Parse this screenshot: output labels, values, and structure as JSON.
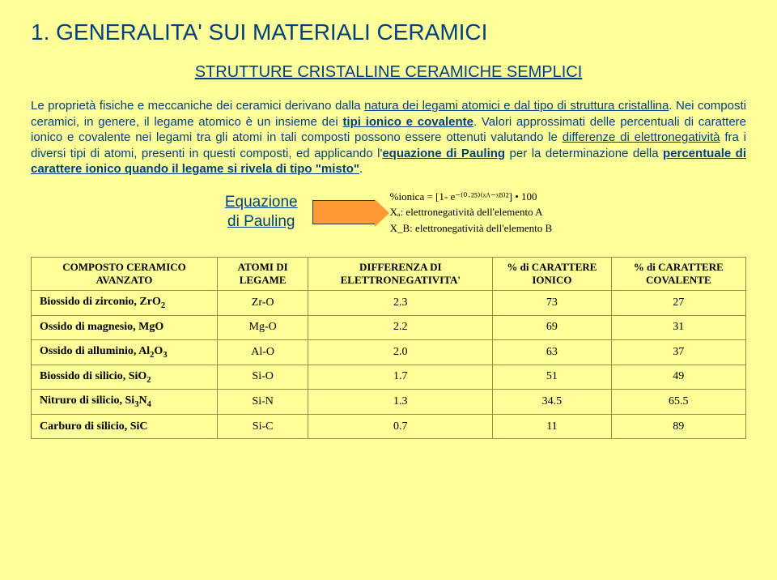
{
  "title": "1. GENERALITA' SUI MATERIALI CERAMICI",
  "subtitle": "STRUTTURE CRISTALLINE CERAMICHE SEMPLICI",
  "paragraph": {
    "p1_a": "Le proprietà fisiche e meccaniche dei ceramici derivano dalla ",
    "p1_u1": "natura dei legami atomici e dal tipo di struttura cristallina",
    "p1_b": ". Nei composti ceramici, in genere, il legame atomico è un insieme dei ",
    "p1_u2": "tipi ionico e covalente",
    "p1_c": ". Valori approssimati delle percentuali di carattere ionico e covalente nei legami tra gli atomi in tali composti possono essere ottenuti valutando le ",
    "p1_u3": "differenze di elettronegatività",
    "p1_d": " fra i diversi tipi di atomi, presenti in questi composti, ed applicando l'",
    "p1_u4": "equazione di Pauling",
    "p1_e": " per la determinazione della ",
    "p1_u5": "percentuale di carattere ionico quando il legame si rivela di tipo \"misto\"",
    "p1_f": "."
  },
  "equation": {
    "label_line1": "Equazione",
    "label_line2": "di Pauling",
    "formula_line1": "%ionica = [1- e⁻⁽⁰·²⁵⁾⁽ˣᴬ⁻ˣᴮ⁾²] • 100",
    "formula_line2": "Xₐ: elettronegatività dell'elemento A",
    "formula_line3": "X_B: elettronegatività dell'elemento B"
  },
  "table": {
    "headers": [
      "COMPOSTO CERAMICO AVANZATO",
      "ATOMI DI LEGAME",
      "DIFFERENZA DI ELETTRONEGATIVITA'",
      "% di CARATTERE IONICO",
      "% di CARATTERE COVALENTE"
    ],
    "rows": [
      {
        "label_html": "Biossido di zirconio, ZrO<sub>2</sub>",
        "atoms": "Zr-O",
        "diff": "2.3",
        "ionic": "73",
        "coval": "27"
      },
      {
        "label_html": "Ossido di magnesio, MgO",
        "atoms": "Mg-O",
        "diff": "2.2",
        "ionic": "69",
        "coval": "31"
      },
      {
        "label_html": "Ossido di alluminio, Al<sub>2</sub>O<sub>3</sub>",
        "atoms": "Al-O",
        "diff": "2.0",
        "ionic": "63",
        "coval": "37"
      },
      {
        "label_html": "Biossido di silicio, SiO<sub>2</sub>",
        "atoms": "Si-O",
        "diff": "1.7",
        "ionic": "51",
        "coval": "49"
      },
      {
        "label_html": "Nitruro di silicio, Si<sub>3</sub>N<sub>4</sub>",
        "atoms": "Si-N",
        "diff": "1.3",
        "ionic": "34.5",
        "coval": "65.5"
      },
      {
        "label_html": "Carburo di silicio, SiC",
        "atoms": "Si-C",
        "diff": "0.7",
        "ionic": "11",
        "coval": "89"
      }
    ]
  },
  "colors": {
    "background": "#ffff99",
    "heading": "#004080",
    "arrow_fill": "#ff9933",
    "table_border": "#a08a40"
  }
}
